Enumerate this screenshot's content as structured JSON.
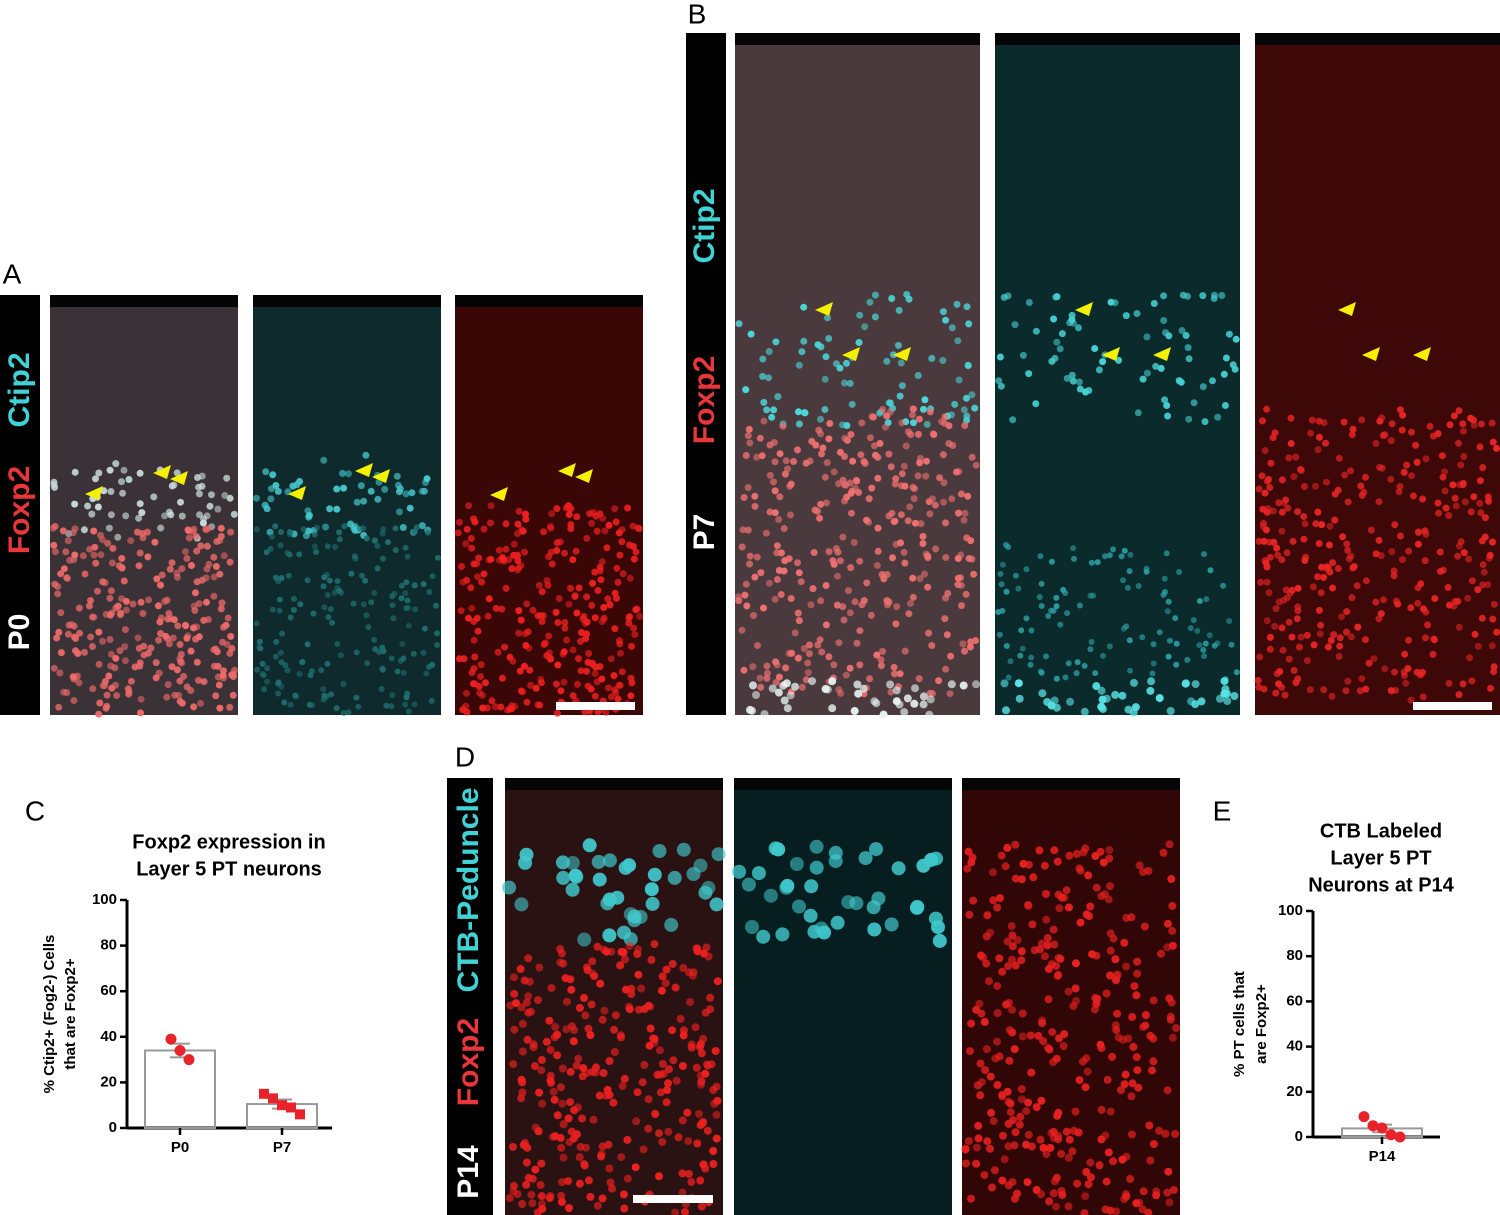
{
  "panels": {
    "A": {
      "label": "A",
      "stains": [
        "Ctip2",
        "Foxp2",
        "P0"
      ]
    },
    "B": {
      "label": "B",
      "stains": [
        "Ctip2",
        "Foxp2",
        "P7"
      ]
    },
    "C": {
      "label": "C"
    },
    "D": {
      "label": "D",
      "stains": [
        "CTB-Peduncle",
        "Foxp2",
        "P14"
      ]
    },
    "E": {
      "label": "E"
    }
  },
  "chart_data": [
    {
      "type": "bar",
      "title": [
        "Foxp2 expression in",
        "Layer 5 PT neurons"
      ],
      "y_label": [
        "% Ctip2+ (Fog2-) Cells",
        "that are Foxp2+"
      ],
      "categories": [
        "P0",
        "P7"
      ],
      "values": [
        34,
        10.5
      ],
      "errors": [
        3,
        2
      ],
      "points": [
        [
          39,
          34,
          30
        ],
        [
          15,
          13,
          10,
          9,
          6
        ]
      ],
      "point_shapes": [
        "circle",
        "square"
      ],
      "point_color": "#e8232a",
      "bar_color": "#999999",
      "ylim": [
        0,
        100
      ],
      "yticks": [
        0,
        20,
        40,
        60,
        80,
        100
      ]
    },
    {
      "type": "bar",
      "title": [
        "CTB Labeled",
        "Layer 5 PT",
        "Neurons at P14"
      ],
      "y_label": [
        "% PT cells that",
        "are Foxp2+"
      ],
      "categories": [
        "P14"
      ],
      "values": [
        3.8
      ],
      "errors": [
        1.7
      ],
      "points": [
        [
          9,
          5,
          4,
          1,
          0
        ]
      ],
      "point_shapes": [
        "circle"
      ],
      "point_color": "#e8232a",
      "bar_color": "#999999",
      "ylim": [
        0,
        100
      ],
      "yticks": [
        0,
        20,
        40,
        60,
        80,
        100
      ]
    }
  ]
}
